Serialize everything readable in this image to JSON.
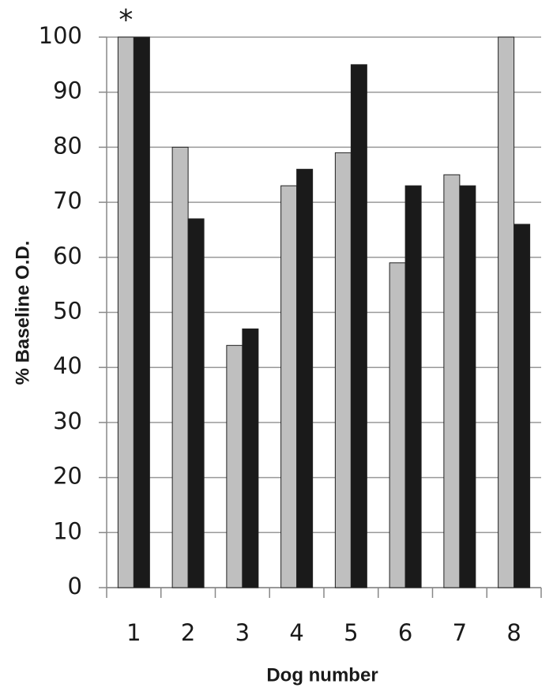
{
  "chart_data": {
    "type": "bar",
    "x_label": "Dog number",
    "y_label": "% Baseline O.D.",
    "annotation": "*",
    "categories": [
      "1",
      "2",
      "3",
      "4",
      "5",
      "6",
      "7",
      "8"
    ],
    "series": [
      {
        "color": "#bfbfbf",
        "values": [
          100,
          80,
          44,
          73,
          79,
          59,
          75,
          100
        ]
      },
      {
        "color": "#1a1a1a",
        "values": [
          100,
          67,
          47,
          76,
          95,
          73,
          73,
          66
        ]
      }
    ],
    "ylim": [
      0,
      100
    ],
    "yticks": [
      0,
      10,
      20,
      30,
      40,
      50,
      60,
      70,
      80,
      90,
      100
    ],
    "grid": true
  }
}
